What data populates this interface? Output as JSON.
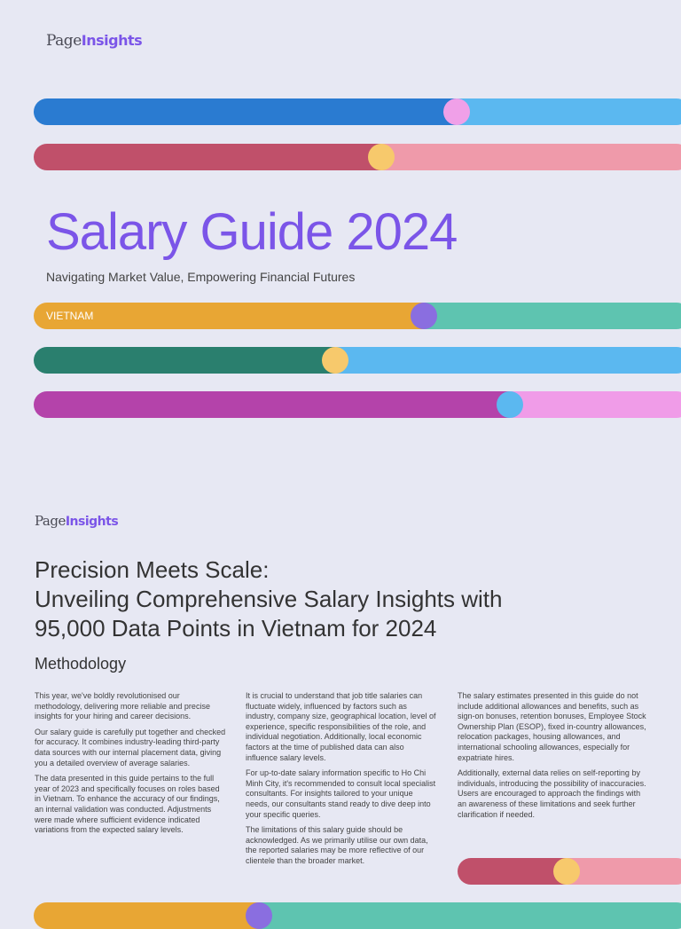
{
  "cover": {
    "brand": {
      "part1": "Page",
      "part2": "Insights"
    },
    "title": "Salary Guide 2024",
    "subtitle": "Navigating Market Value, Empowering Financial Futures",
    "tag": "VIETNAM"
  },
  "page": {
    "brand": {
      "part1": "Page",
      "part2": "Insights"
    },
    "heading": [
      "Precision Meets Scale:",
      "Unveiling Comprehensive Salary Insights with",
      "95,000 Data Points in Vietnam for 2024"
    ],
    "section": "Methodology",
    "columns": [
      [
        "This year, we've boldly revolutionised our methodology, delivering more reliable and precise insights for your hiring and career decisions.",
        "Our salary guide is carefully put together and checked for accuracy. It combines industry-leading third-party data sources with our internal placement data, giving you a detailed overview of average salaries.",
        "The data presented in this guide pertains to the full year of 2023 and specifically focuses on roles based in Vietnam. To enhance the accuracy of our findings, an internal validation was conducted. Adjustments were made where sufficient evidence indicated variations from the expected salary levels."
      ],
      [
        "It is crucial to understand that job title salaries can fluctuate widely, influenced by factors such as industry, company size, geographical location, level of experience, specific responsibilities of the role, and individual negotiation. Additionally, local economic factors at the time of published data can also influence salary levels.",
        "For up-to-date salary information specific to Ho Chi Minh City, it's recommended to consult local specialist consultants. For insights tailored to your unique needs, our consultants stand ready to dive deep into your specific queries.",
        "The limitations of this salary guide should be acknowledged. As we primarily utilise our own data, the reported salaries may be more reflective of our clientele than the broader market."
      ],
      [
        "The salary estimates presented in this guide do not include additional allowances and benefits, such as sign-on bonuses, retention bonuses, Employee Stock Ownership Plan (ESOP), fixed in-country allowances, relocation packages, housing allowances, and international schooling allowances, especially for expatriate hires.",
        "Additionally, external data relies on self-reporting by individuals, introducing the possibility of inaccuracies. Users are encouraged to approach the findings with an awareness of these limitations and seek further clarification if needed."
      ]
    ]
  }
}
